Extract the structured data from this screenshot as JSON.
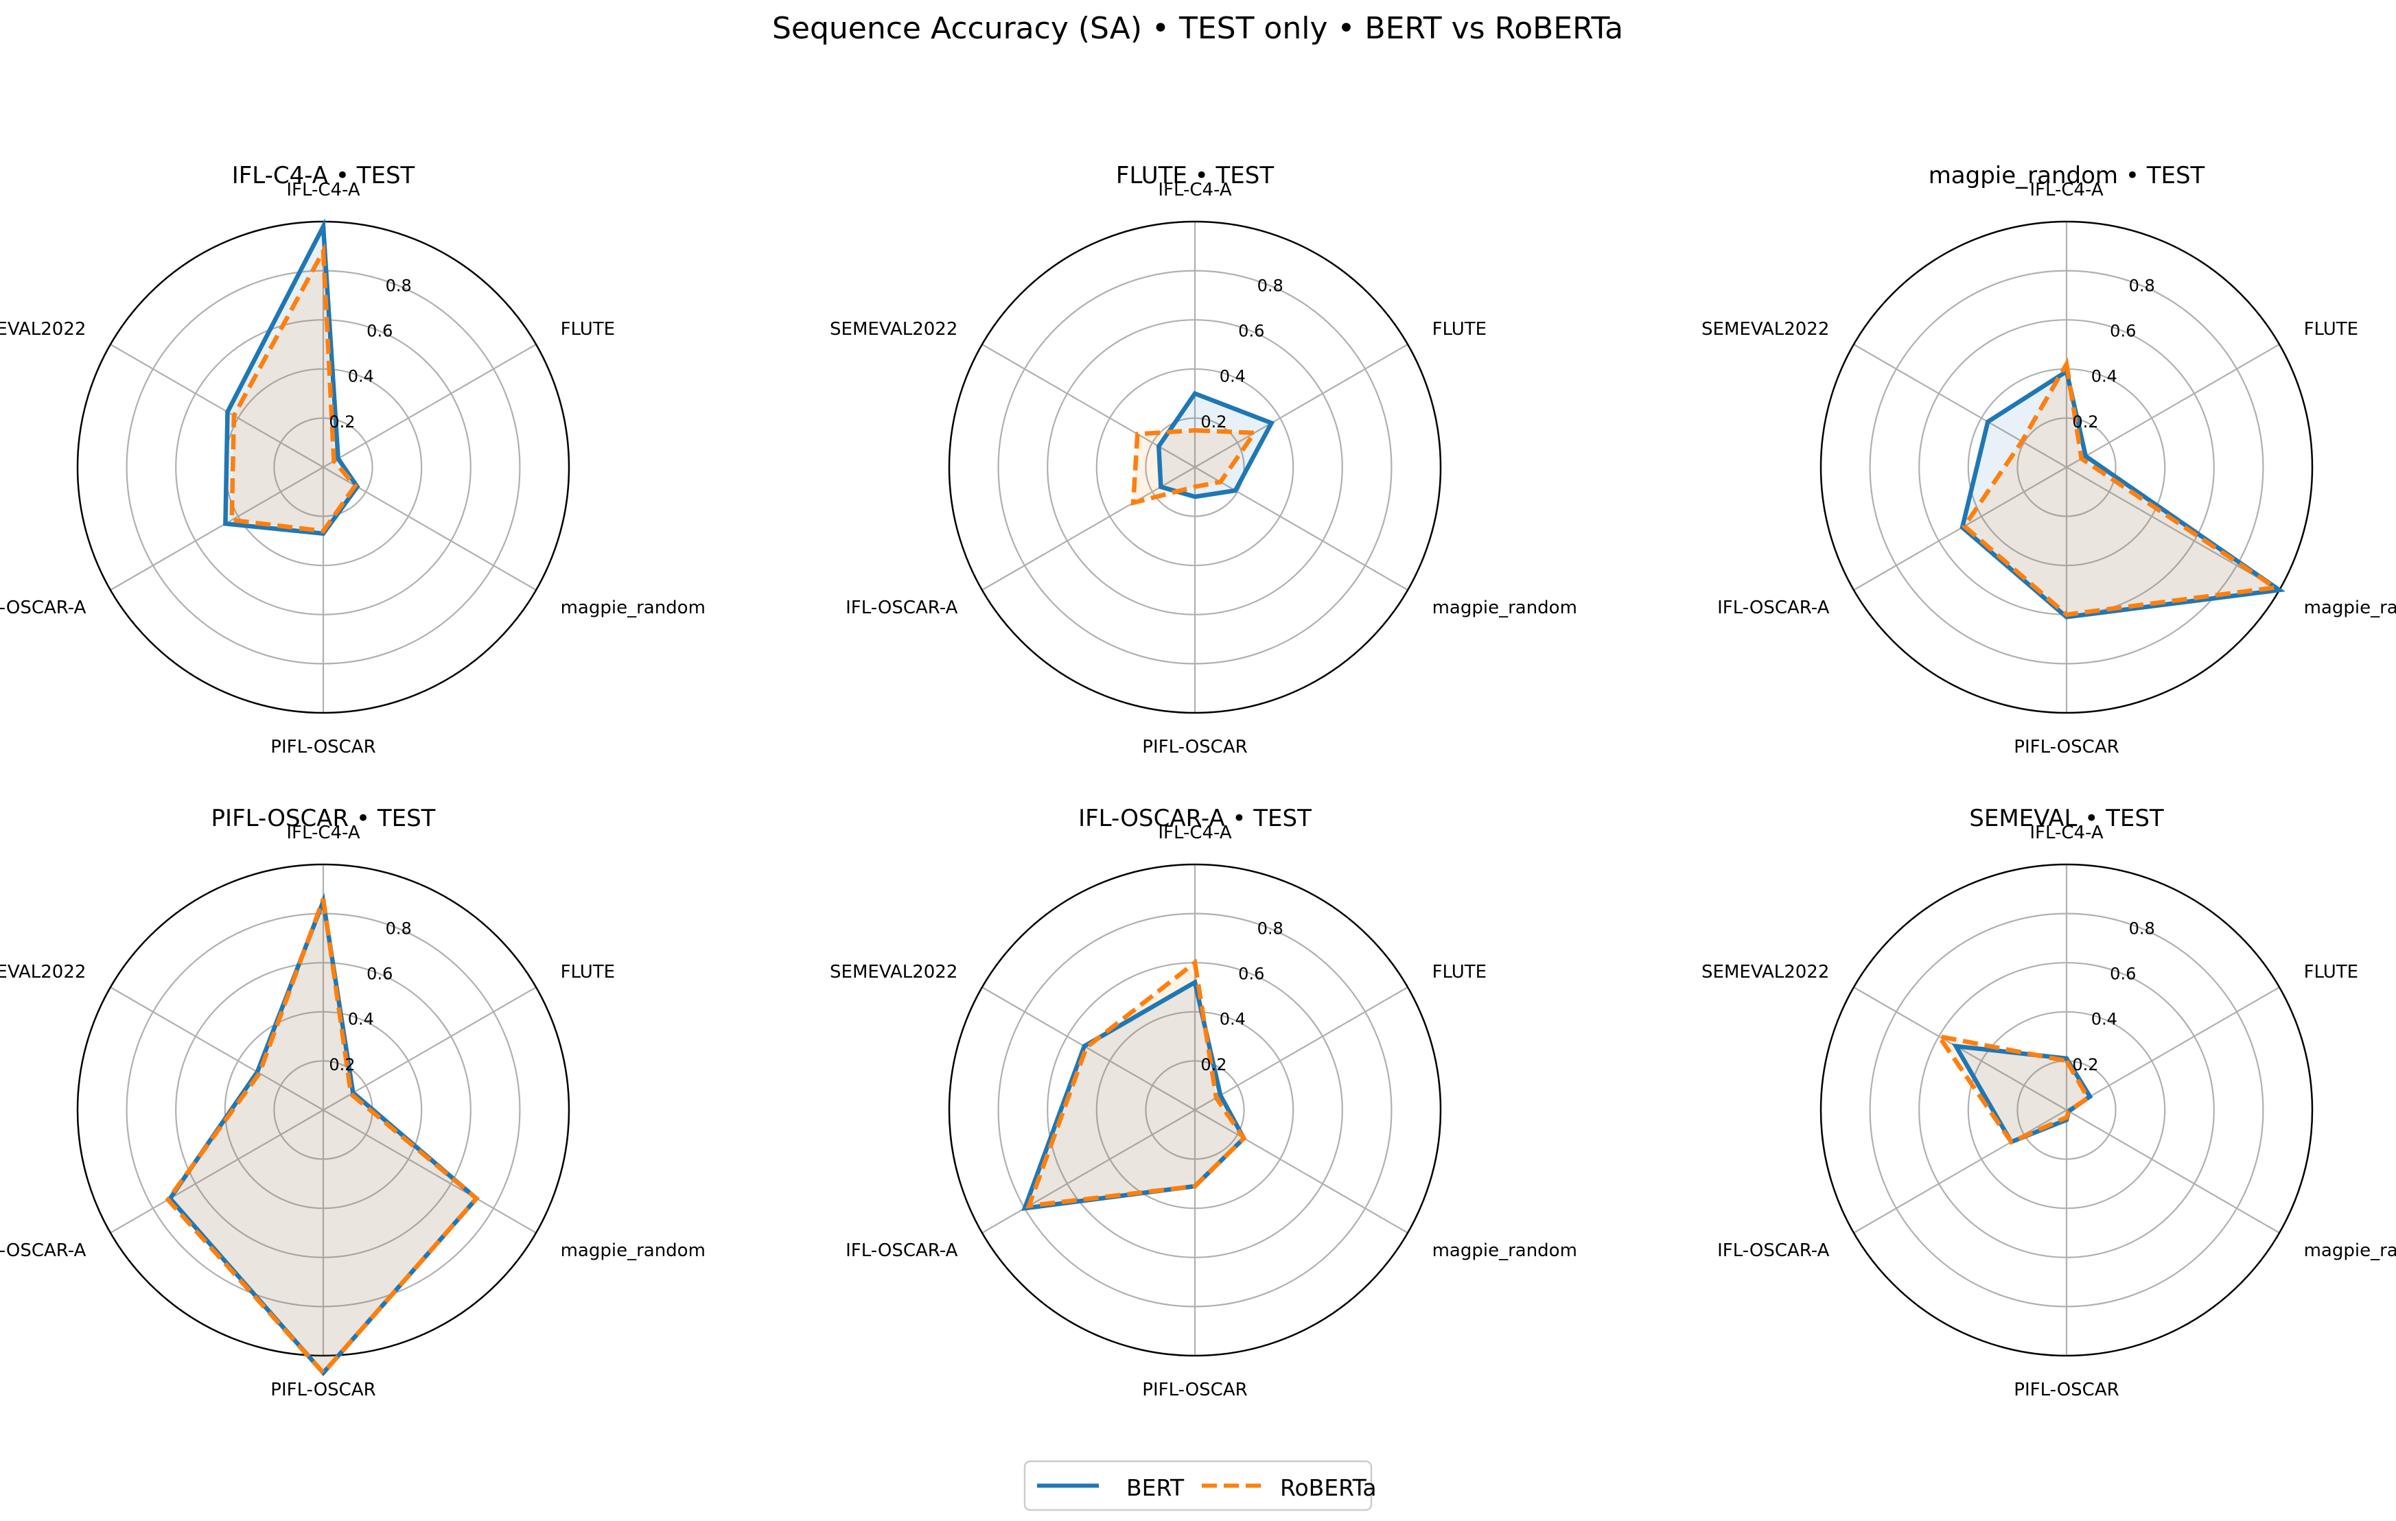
{
  "chart_data": {
    "type": "radar",
    "title": "Sequence Accuracy (SA) • TEST only • BERT vs RoBERTa",
    "axes": [
      "IFL-C4-A",
      "FLUTE",
      "magpie_random",
      "PIFL-OSCAR",
      "IFL-OSCAR-A",
      "SEMEVAL2022"
    ],
    "rlim": [
      0,
      1.0
    ],
    "rticks": [
      0.2,
      0.4,
      0.6,
      0.8
    ],
    "rtick_labels": [
      "0.2",
      "0.4",
      "0.6",
      "0.8"
    ],
    "legend": {
      "position": "bottom-center",
      "entries": [
        {
          "name": "BERT",
          "color": "#1f77b4",
          "style": "solid"
        },
        {
          "name": "RoBERTa",
          "color": "#ff7f0e",
          "style": "dashed"
        }
      ]
    },
    "panels": [
      {
        "title": "IFL-C4-A • TEST",
        "series": [
          {
            "name": "BERT",
            "values": [
              0.98,
              0.07,
              0.16,
              0.27,
              0.46,
              0.45
            ]
          },
          {
            "name": "RoBERTa",
            "values": [
              0.88,
              0.05,
              0.15,
              0.26,
              0.43,
              0.42
            ]
          }
        ]
      },
      {
        "title": "FLUTE • TEST",
        "series": [
          {
            "name": "BERT",
            "values": [
              0.3,
              0.36,
              0.19,
              0.12,
              0.16,
              0.17
            ]
          },
          {
            "name": "RoBERTa",
            "values": [
              0.15,
              0.28,
              0.12,
              0.08,
              0.29,
              0.27
            ]
          }
        ]
      },
      {
        "title": "magpie_random • TEST",
        "series": [
          {
            "name": "BERT",
            "values": [
              0.39,
              0.09,
              1.0,
              0.61,
              0.49,
              0.37
            ]
          },
          {
            "name": "RoBERTa",
            "values": [
              0.42,
              0.07,
              0.98,
              0.6,
              0.48,
              0.21
            ]
          }
        ]
      },
      {
        "title": "PIFL-OSCAR • TEST",
        "series": [
          {
            "name": "BERT",
            "values": [
              0.85,
              0.14,
              0.72,
              1.07,
              0.72,
              0.31
            ]
          },
          {
            "name": "RoBERTa",
            "values": [
              0.86,
              0.13,
              0.72,
              1.07,
              0.73,
              0.3
            ]
          }
        ]
      },
      {
        "title": "IFL-OSCAR-A • TEST",
        "series": [
          {
            "name": "BERT",
            "values": [
              0.52,
              0.12,
              0.23,
              0.31,
              0.8,
              0.52
            ]
          },
          {
            "name": "RoBERTa",
            "values": [
              0.6,
              0.1,
              0.23,
              0.31,
              0.78,
              0.51
            ]
          }
        ]
      },
      {
        "title": "SEMEVAL • TEST",
        "series": [
          {
            "name": "BERT",
            "values": [
              0.21,
              0.11,
              0.01,
              0.04,
              0.26,
              0.52
            ]
          },
          {
            "name": "RoBERTa",
            "values": [
              0.2,
              0.1,
              0.01,
              0.03,
              0.26,
              0.6
            ]
          }
        ]
      }
    ]
  }
}
